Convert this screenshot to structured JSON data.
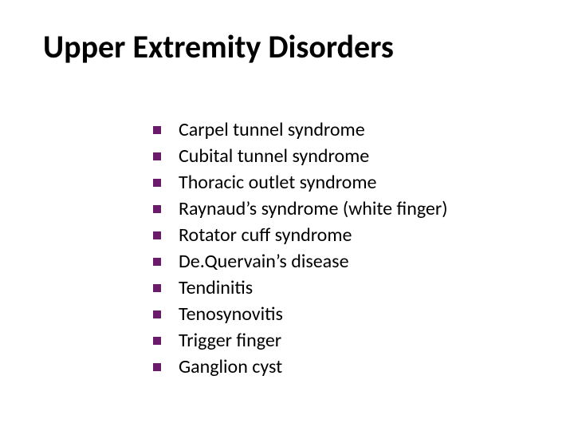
{
  "slide": {
    "title": "Upper Extremity Disorders",
    "bullet_color": "#6a1b6a",
    "text_color": "#000000",
    "background_color": "#ffffff",
    "title_fontsize": 40,
    "item_fontsize": 24,
    "bullet_size": 10,
    "items": [
      "Carpel tunnel syndrome",
      "Cubital tunnel syndrome",
      "Thoracic outlet syndrome",
      "Raynaud’s syndrome (white finger)",
      "Rotator cuff syndrome",
      "De.Quervain’s disease",
      "Tendinitis",
      "Tenosynovitis",
      "Trigger finger",
      "Ganglion cyst"
    ]
  }
}
